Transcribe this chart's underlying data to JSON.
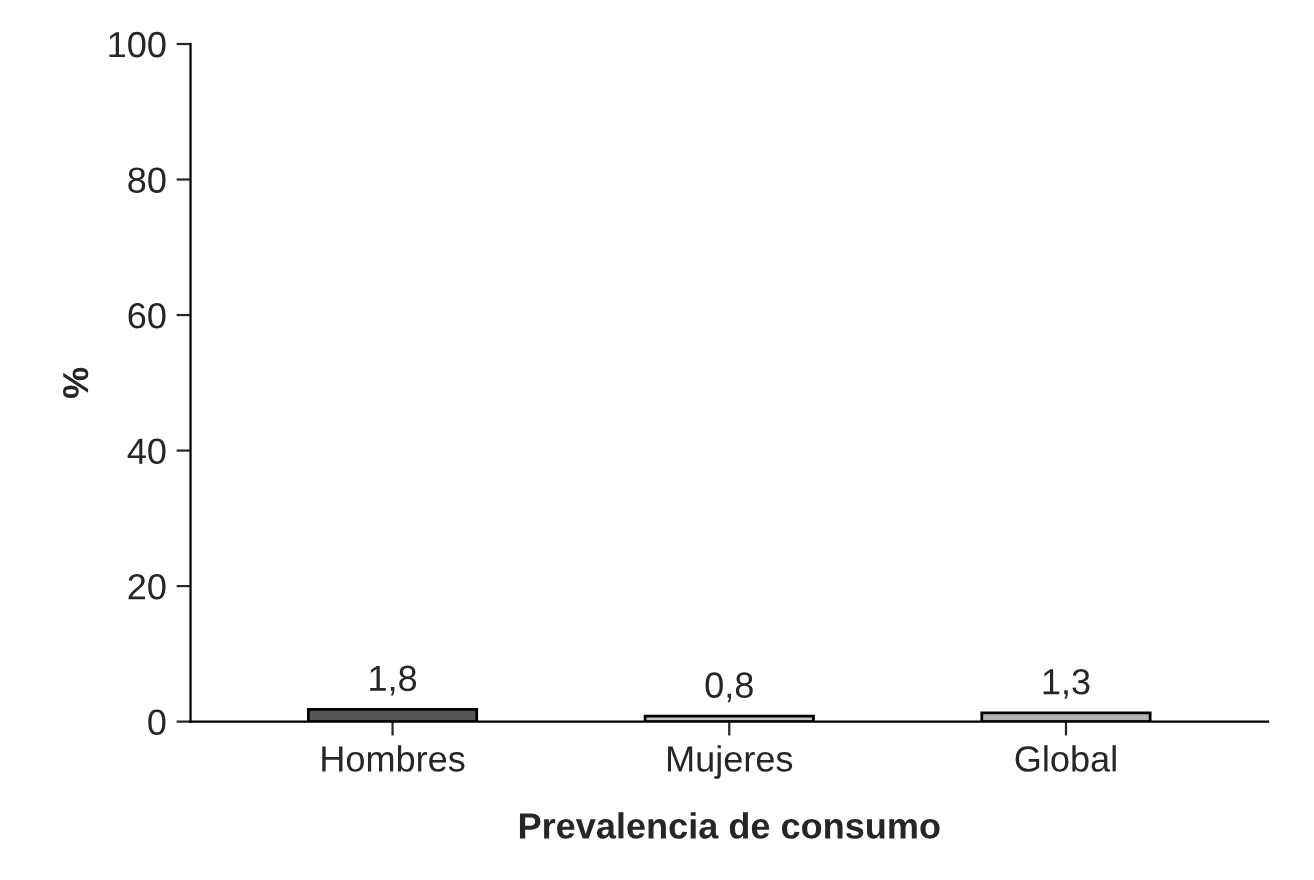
{
  "chart_data": {
    "type": "bar",
    "xlabel": "Prevalencia de consumo",
    "ylabel": "%",
    "categories": [
      "Hombres",
      "Mujeres",
      "Global"
    ],
    "values": [
      1.8,
      0.8,
      1.3
    ],
    "colors": [
      "#555555",
      "#c8c8c8",
      "#b4b4b4"
    ],
    "value_labels": [
      "1,8",
      "0,8",
      "1,3"
    ],
    "ylim": [
      0,
      100
    ],
    "yticks": [
      0,
      20,
      40,
      60,
      80,
      100
    ],
    "grid": false
  }
}
